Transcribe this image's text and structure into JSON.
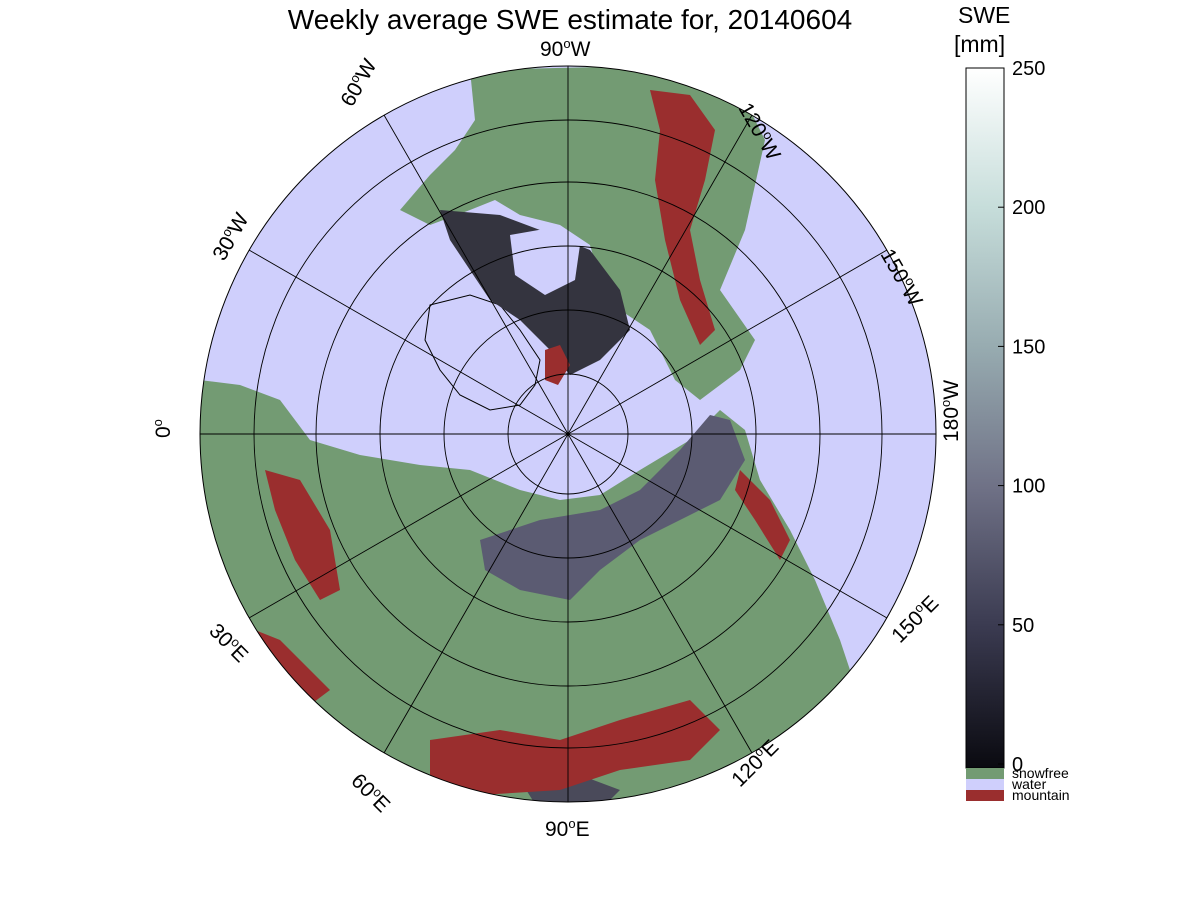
{
  "title": "Weekly average SWE estimate for, 20140604",
  "colorbar": {
    "title_line1": "SWE",
    "title_line2": "[mm]",
    "ticks": [
      "0",
      "50",
      "100",
      "150",
      "200",
      "250"
    ],
    "tick_values": [
      0,
      50,
      100,
      150,
      200,
      250
    ],
    "range": [
      0,
      250
    ],
    "gradient_colors": [
      "#0a0a10",
      "#3a3a50",
      "#6f7186",
      "#97abb0",
      "#c6ddda",
      "#ffffff"
    ],
    "categories": [
      {
        "label": "snowfree",
        "color": "#739b73"
      },
      {
        "label": "water",
        "color": "#cfcffc"
      },
      {
        "label": "mountain",
        "color": "#9a2e2e"
      }
    ]
  },
  "map": {
    "projection": "north polar stereographic",
    "ocean_color": "#cfcffc",
    "land_color": "#739b73",
    "mountain_color": "#9a2e2e",
    "snow_color": "#3a3a4c",
    "meridian_labels": [
      {
        "deg": "90",
        "dir": "W"
      },
      {
        "deg": "60",
        "dir": "W"
      },
      {
        "deg": "120",
        "dir": "W"
      },
      {
        "deg": "30",
        "dir": "W"
      },
      {
        "deg": "150",
        "dir": "W"
      },
      {
        "deg": "0",
        "dir": ""
      },
      {
        "deg": "180",
        "dir": "W"
      },
      {
        "deg": "30",
        "dir": "E"
      },
      {
        "deg": "150",
        "dir": "E"
      },
      {
        "deg": "60",
        "dir": "E"
      },
      {
        "deg": "120",
        "dir": "E"
      },
      {
        "deg": "90",
        "dir": "E"
      }
    ]
  }
}
